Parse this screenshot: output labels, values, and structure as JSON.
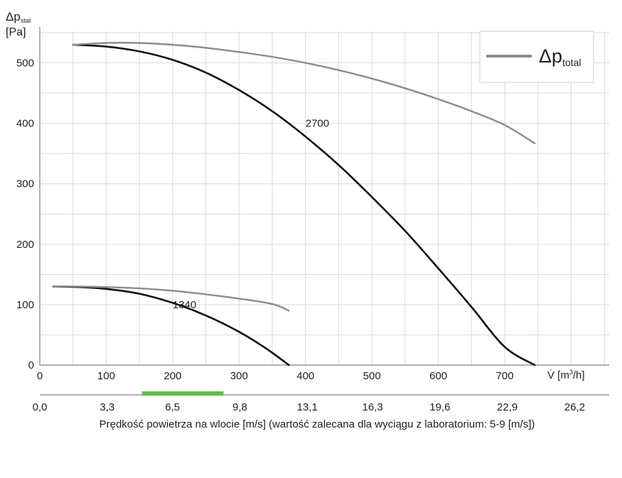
{
  "chart_data": {
    "type": "line",
    "y_axis_label_main": "Δp",
    "y_axis_label_sub": "stat",
    "y_axis_unit": "[Pa]",
    "x_axis_label_main": "V̇",
    "x_axis_label_unit_prefix": " [m",
    "x_axis_label_unit_sup": "3",
    "x_axis_label_unit_suffix": "/h]",
    "xlim": [
      0,
      850
    ],
    "ylim": [
      0,
      550
    ],
    "x_ticks": [
      0,
      100,
      200,
      300,
      400,
      500,
      600,
      700
    ],
    "y_ticks": [
      0,
      100,
      200,
      300,
      400,
      500
    ],
    "grid": true,
    "legend": {
      "position": "top-right",
      "label_main": "Δp",
      "label_sub": "total",
      "color": "#8c8c8c"
    },
    "series": [
      {
        "name": "2700",
        "kind": "static",
        "color": "#111111",
        "points": [
          [
            50,
            530
          ],
          [
            100,
            527
          ],
          [
            150,
            519
          ],
          [
            200,
            505
          ],
          [
            250,
            484
          ],
          [
            300,
            455
          ],
          [
            350,
            420
          ],
          [
            400,
            378
          ],
          [
            450,
            331
          ],
          [
            500,
            278
          ],
          [
            550,
            222
          ],
          [
            600,
            160
          ],
          [
            650,
            96
          ],
          [
            700,
            30
          ],
          [
            745,
            0
          ]
        ]
      },
      {
        "name": "",
        "kind": "total",
        "color": "#8c8c8c",
        "points": [
          [
            50,
            530
          ],
          [
            100,
            533
          ],
          [
            150,
            533
          ],
          [
            200,
            530
          ],
          [
            250,
            525
          ],
          [
            300,
            518
          ],
          [
            350,
            510
          ],
          [
            400,
            500
          ],
          [
            450,
            488
          ],
          [
            500,
            474
          ],
          [
            550,
            458
          ],
          [
            600,
            440
          ],
          [
            650,
            420
          ],
          [
            700,
            397
          ],
          [
            745,
            367
          ]
        ]
      },
      {
        "name": "1340",
        "kind": "static",
        "color": "#111111",
        "points": [
          [
            20,
            130
          ],
          [
            60,
            129
          ],
          [
            100,
            126
          ],
          [
            150,
            118
          ],
          [
            200,
            103
          ],
          [
            250,
            82
          ],
          [
            300,
            55
          ],
          [
            340,
            28
          ],
          [
            375,
            0
          ]
        ]
      },
      {
        "name": "",
        "kind": "total",
        "color": "#8c8c8c",
        "points": [
          [
            20,
            130
          ],
          [
            60,
            130
          ],
          [
            100,
            129
          ],
          [
            150,
            127
          ],
          [
            200,
            123
          ],
          [
            250,
            117
          ],
          [
            300,
            110
          ],
          [
            350,
            101
          ],
          [
            375,
            90
          ]
        ]
      }
    ],
    "secondary_axis": {
      "tick_labels": [
        "0,0",
        "3,3",
        "6,5",
        "9,8",
        "13,1",
        "16,3",
        "19,6",
        "22,9",
        "26,2"
      ],
      "xlabel": "Prędkość powietrza na wlocie [m/s] (wartość zalecana dla wyciągu z laboratorium: 5-9 [m/s])",
      "recommended_range": [
        5,
        9
      ],
      "recommended_color": "#5cbf4a"
    }
  }
}
